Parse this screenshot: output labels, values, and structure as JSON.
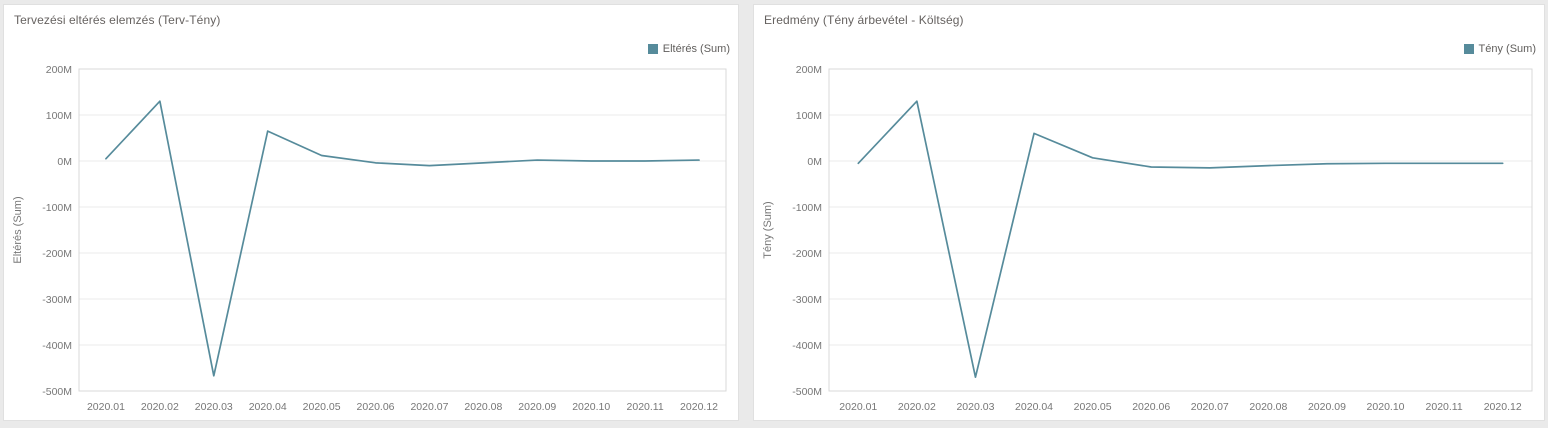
{
  "colors": {
    "line": "#568b9b",
    "grid": "#ebebeb",
    "plot_border": "#d9d9d9",
    "tick_text": "#777777",
    "title_text": "#666260",
    "card_background": "#ffffff",
    "page_background": "#eaeaea"
  },
  "chart_data": [
    {
      "type": "line",
      "title": "Tervezési eltérés elemzés (Terv-Tény)",
      "legend_label": "Eltérés (Sum)",
      "legend_position": "top-right",
      "ylabel": "Eltérés (Sum)",
      "xlabel": "",
      "unit": "M",
      "grid": "horizontal",
      "ylim": [
        -500,
        200
      ],
      "yticks": [
        200,
        100,
        0,
        -100,
        -200,
        -300,
        -400,
        -500
      ],
      "categories": [
        "2020.01",
        "2020.02",
        "2020.03",
        "2020.04",
        "2020.05",
        "2020.06",
        "2020.07",
        "2020.08",
        "2020.09",
        "2020.10",
        "2020.11",
        "2020.12"
      ],
      "series": [
        {
          "name": "Eltérés (Sum)",
          "values": [
            5,
            130,
            -467,
            65,
            12,
            -4,
            -10,
            -4,
            2,
            0,
            0,
            2
          ]
        }
      ]
    },
    {
      "type": "line",
      "title": "Eredmény (Tény árbevétel - Költség)",
      "legend_label": "Tény (Sum)",
      "legend_position": "top-right",
      "ylabel": "Tény (Sum)",
      "xlabel": "",
      "unit": "M",
      "grid": "horizontal",
      "ylim": [
        -500,
        200
      ],
      "yticks": [
        200,
        100,
        0,
        -100,
        -200,
        -300,
        -400,
        -500
      ],
      "categories": [
        "2020.01",
        "2020.02",
        "2020.03",
        "2020.04",
        "2020.05",
        "2020.06",
        "2020.07",
        "2020.08",
        "2020.09",
        "2020.10",
        "2020.11",
        "2020.12"
      ],
      "series": [
        {
          "name": "Tény (Sum)",
          "values": [
            -5,
            130,
            -470,
            60,
            7,
            -13,
            -15,
            -10,
            -6,
            -5,
            -5,
            -5
          ]
        }
      ]
    }
  ]
}
